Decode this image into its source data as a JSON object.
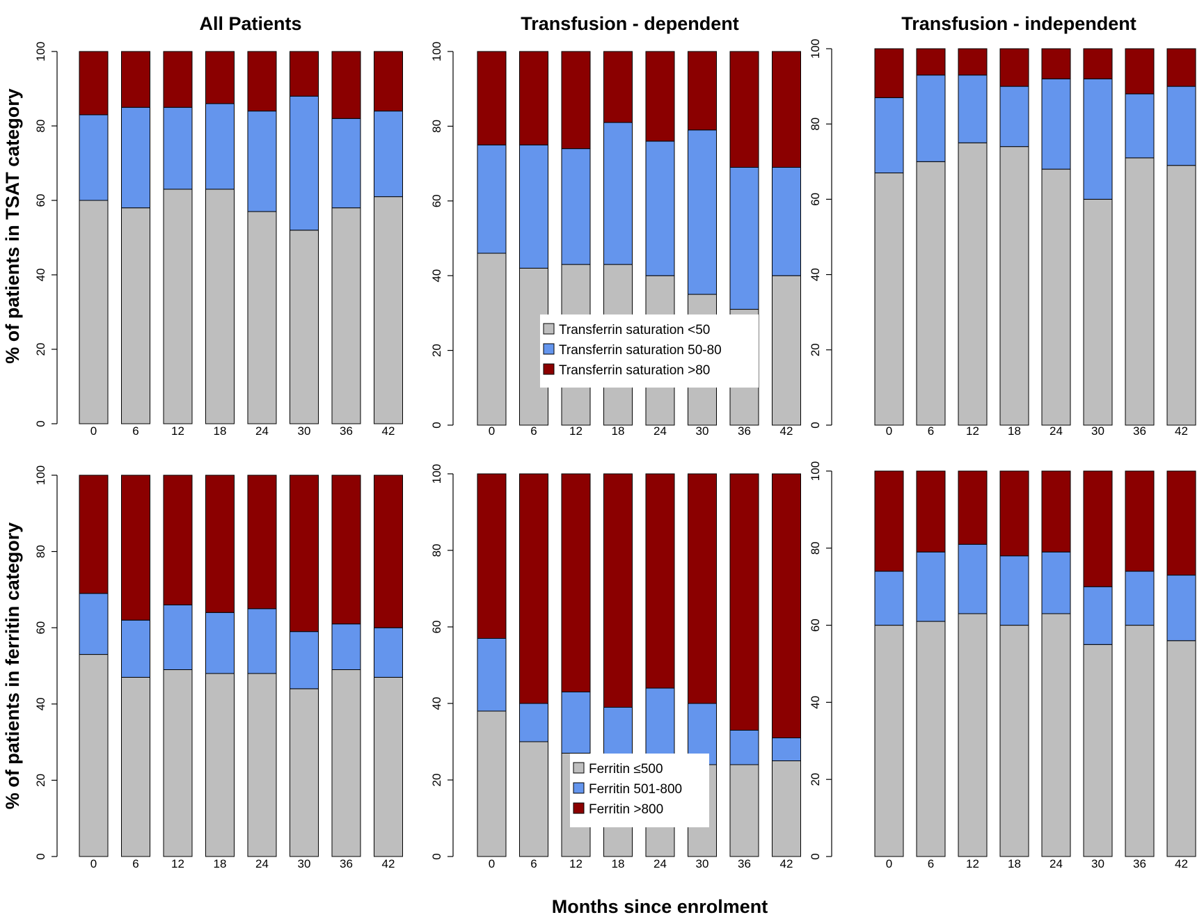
{
  "colors": {
    "low": "#bebebe",
    "mid": "#6495ed",
    "high": "#8b0000"
  },
  "x_axis_title": "Months since enrolment",
  "column_titles": [
    "All Patients",
    "Transfusion - dependent",
    "Transfusion - independent"
  ],
  "row_titles": [
    "% of patients in TSAT category",
    "% of patients in ferritin category"
  ],
  "legends": [
    {
      "items": [
        "Transferrin saturation <50",
        "Transferrin saturation 50-80",
        "Transferrin saturation >80"
      ]
    },
    {
      "items": [
        "Ferritin ≤500",
        "Ferritin 501-800",
        "Ferritin >800"
      ]
    }
  ],
  "chart_data": [
    {
      "type": "bar",
      "stacked": true,
      "title": "All Patients",
      "ylabel": "% of patients in TSAT category",
      "xlabel": "Months since enrolment",
      "categories": [
        "0",
        "6",
        "12",
        "18",
        "24",
        "30",
        "36",
        "42"
      ],
      "ylim": [
        0,
        100
      ],
      "yticks": [
        0,
        20,
        40,
        60,
        80,
        100
      ],
      "series": [
        {
          "name": "Transferrin saturation <50",
          "values": [
            60,
            58,
            63,
            63,
            57,
            52,
            58,
            61
          ]
        },
        {
          "name": "Transferrin saturation 50-80",
          "values": [
            23,
            27,
            22,
            23,
            27,
            36,
            24,
            23
          ]
        },
        {
          "name": "Transferrin saturation >80",
          "values": [
            17,
            15,
            15,
            14,
            16,
            12,
            18,
            16
          ]
        }
      ]
    },
    {
      "type": "bar",
      "stacked": true,
      "title": "Transfusion - dependent",
      "ylabel": "% of patients in TSAT category",
      "xlabel": "Months since enrolment",
      "categories": [
        "0",
        "6",
        "12",
        "18",
        "24",
        "30",
        "36",
        "42"
      ],
      "ylim": [
        0,
        100
      ],
      "yticks": [
        0,
        20,
        40,
        60,
        80,
        100
      ],
      "series": [
        {
          "name": "Transferrin saturation <50",
          "values": [
            46,
            42,
            43,
            43,
            40,
            35,
            31,
            40
          ]
        },
        {
          "name": "Transferrin saturation 50-80",
          "values": [
            29,
            33,
            31,
            38,
            36,
            44,
            38,
            29
          ]
        },
        {
          "name": "Transferrin saturation >80",
          "values": [
            25,
            25,
            26,
            19,
            24,
            21,
            31,
            31
          ]
        }
      ]
    },
    {
      "type": "bar",
      "stacked": true,
      "title": "Transfusion - independent",
      "ylabel": "% of patients in TSAT category",
      "xlabel": "Months since enrolment",
      "categories": [
        "0",
        "6",
        "12",
        "18",
        "24",
        "30",
        "36",
        "42"
      ],
      "ylim": [
        0,
        100
      ],
      "yticks": [
        0,
        20,
        40,
        60,
        80,
        100
      ],
      "series": [
        {
          "name": "Transferrin saturation <50",
          "values": [
            67,
            70,
            75,
            74,
            68,
            60,
            71,
            69
          ]
        },
        {
          "name": "Transferrin saturation 50-80",
          "values": [
            20,
            23,
            18,
            16,
            24,
            32,
            17,
            21
          ]
        },
        {
          "name": "Transferrin saturation >80",
          "values": [
            13,
            7,
            7,
            10,
            8,
            8,
            12,
            10
          ]
        }
      ]
    },
    {
      "type": "bar",
      "stacked": true,
      "title": "All Patients",
      "ylabel": "% of patients in ferritin category",
      "xlabel": "Months since enrolment",
      "categories": [
        "0",
        "6",
        "12",
        "18",
        "24",
        "30",
        "36",
        "42"
      ],
      "ylim": [
        0,
        100
      ],
      "yticks": [
        0,
        20,
        40,
        60,
        80,
        100
      ],
      "series": [
        {
          "name": "Ferritin ≤500",
          "values": [
            53,
            47,
            49,
            48,
            48,
            44,
            49,
            47
          ]
        },
        {
          "name": "Ferritin 501-800",
          "values": [
            16,
            15,
            17,
            16,
            17,
            15,
            12,
            13
          ]
        },
        {
          "name": "Ferritin >800",
          "values": [
            31,
            38,
            34,
            36,
            35,
            41,
            39,
            40
          ]
        }
      ]
    },
    {
      "type": "bar",
      "stacked": true,
      "title": "Transfusion - dependent",
      "ylabel": "% of patients in ferritin category",
      "xlabel": "Months since enrolment",
      "categories": [
        "0",
        "6",
        "12",
        "18",
        "24",
        "30",
        "36",
        "42"
      ],
      "ylim": [
        0,
        100
      ],
      "yticks": [
        0,
        20,
        40,
        60,
        80,
        100
      ],
      "series": [
        {
          "name": "Ferritin ≤500",
          "values": [
            38,
            30,
            27,
            25,
            25,
            24,
            24,
            25
          ]
        },
        {
          "name": "Ferritin 501-800",
          "values": [
            19,
            10,
            16,
            14,
            19,
            16,
            9,
            6
          ]
        },
        {
          "name": "Ferritin >800",
          "values": [
            43,
            60,
            57,
            61,
            56,
            60,
            67,
            69
          ]
        }
      ]
    },
    {
      "type": "bar",
      "stacked": true,
      "title": "Transfusion - independent",
      "ylabel": "% of patients in ferritin category",
      "xlabel": "Months since enrolment",
      "categories": [
        "0",
        "6",
        "12",
        "18",
        "24",
        "30",
        "36",
        "42"
      ],
      "ylim": [
        0,
        100
      ],
      "yticks": [
        0,
        20,
        40,
        60,
        80,
        100
      ],
      "series": [
        {
          "name": "Ferritin ≤500",
          "values": [
            60,
            61,
            63,
            60,
            63,
            55,
            60,
            56
          ]
        },
        {
          "name": "Ferritin 501-800",
          "values": [
            14,
            18,
            18,
            18,
            16,
            15,
            14,
            17
          ]
        },
        {
          "name": "Ferritin >800",
          "values": [
            26,
            21,
            19,
            22,
            21,
            30,
            26,
            27
          ]
        }
      ]
    }
  ]
}
